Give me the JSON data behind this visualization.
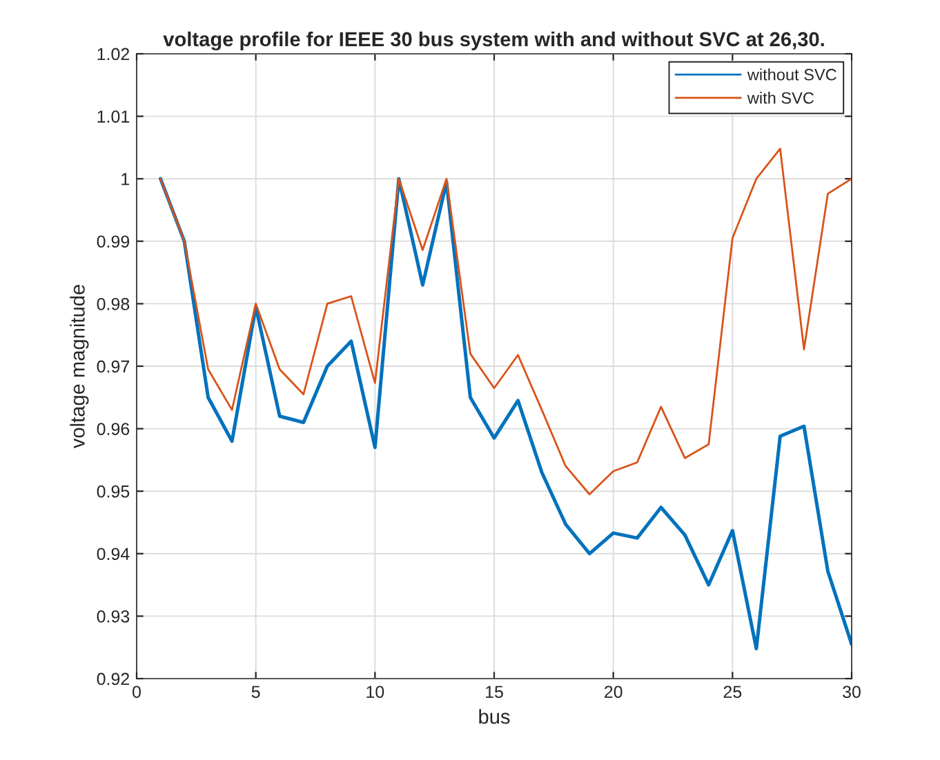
{
  "chart_data": {
    "type": "line",
    "title": "voltage profile for IEEE 30 bus system with and without SVC at 26,30.",
    "xlabel": "bus",
    "ylabel": "voltage magnitude",
    "x": [
      1,
      2,
      3,
      4,
      5,
      6,
      7,
      8,
      9,
      10,
      11,
      12,
      13,
      14,
      15,
      16,
      17,
      18,
      19,
      20,
      21,
      22,
      23,
      24,
      25,
      26,
      27,
      28,
      29,
      30
    ],
    "series": [
      {
        "name": "without SVC",
        "color": "#0072bd",
        "values": [
          1.0,
          0.99,
          0.965,
          0.958,
          0.9795,
          0.962,
          0.961,
          0.97,
          0.974,
          0.957,
          1.0,
          0.983,
          0.9995,
          0.965,
          0.9585,
          0.9645,
          0.953,
          0.9447,
          0.94,
          0.9433,
          0.9425,
          0.9474,
          0.943,
          0.935,
          0.9437,
          0.9248,
          0.9588,
          0.9604,
          0.9372,
          0.9255
        ]
      },
      {
        "name": "with SVC",
        "color": "#d95319",
        "values": [
          1.0,
          0.99,
          0.9695,
          0.963,
          0.98,
          0.9695,
          0.9655,
          0.98,
          0.9812,
          0.9673,
          1.0,
          0.9886,
          1.0,
          0.972,
          0.9665,
          0.9718,
          0.963,
          0.954,
          0.9495,
          0.9532,
          0.9546,
          0.9635,
          0.9553,
          0.9575,
          0.9905,
          1.0,
          1.0048,
          0.9727,
          0.9976,
          1.0
        ]
      }
    ],
    "xlim": [
      0,
      30
    ],
    "xticks": [
      0,
      5,
      10,
      15,
      20,
      25,
      30
    ],
    "ylim": [
      0.92,
      1.02
    ],
    "yticks": [
      0.92,
      0.93,
      0.94,
      0.95,
      0.96,
      0.97,
      0.98,
      0.99,
      1,
      1.01,
      1.02
    ],
    "grid": true,
    "legend": "top right",
    "line_style": "solid",
    "marker": "none"
  }
}
